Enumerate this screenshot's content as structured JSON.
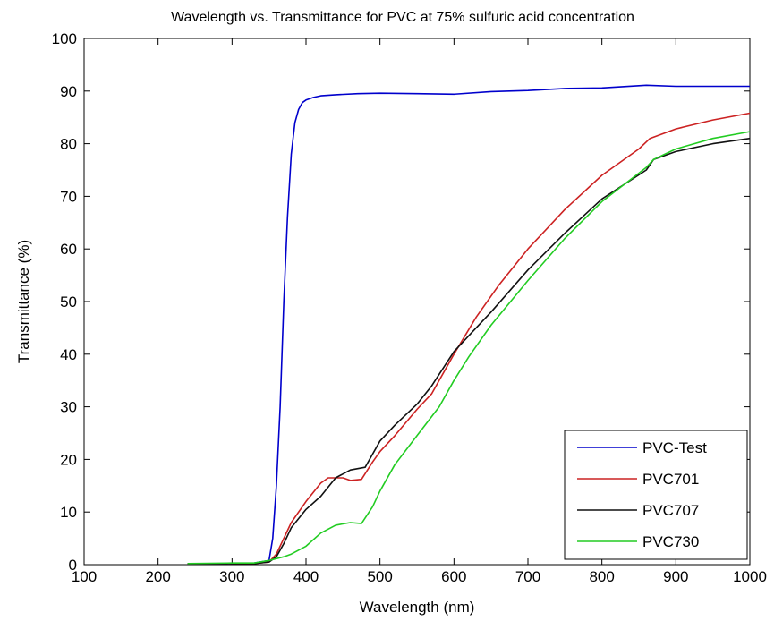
{
  "chart_data": {
    "type": "line",
    "title": "Wavelength vs. Transmittance for PVC at 75% sulfuric acid concentration",
    "xlabel": "Wavelength (nm)",
    "ylabel": "Transmittance (%)",
    "xlim": [
      100,
      1000
    ],
    "ylim": [
      0,
      100
    ],
    "xticks": [
      "100",
      "200",
      "300",
      "400",
      "500",
      "600",
      "700",
      "800",
      "900",
      "1000"
    ],
    "yticks": [
      "0",
      "10",
      "20",
      "30",
      "40",
      "50",
      "60",
      "70",
      "80",
      "90",
      "100"
    ],
    "grid": false,
    "legend_position": "bottom-right",
    "series": [
      {
        "name": "PVC-Test",
        "color": "#0000cc",
        "points": [
          [
            240,
            0.2
          ],
          [
            300,
            0.2
          ],
          [
            330,
            0.3
          ],
          [
            350,
            0.8
          ],
          [
            355,
            5
          ],
          [
            360,
            15
          ],
          [
            365,
            30
          ],
          [
            370,
            50
          ],
          [
            375,
            66
          ],
          [
            380,
            78
          ],
          [
            385,
            84
          ],
          [
            390,
            86.5
          ],
          [
            395,
            87.8
          ],
          [
            400,
            88.3
          ],
          [
            410,
            88.8
          ],
          [
            420,
            89.1
          ],
          [
            440,
            89.3
          ],
          [
            470,
            89.5
          ],
          [
            500,
            89.6
          ],
          [
            550,
            89.5
          ],
          [
            600,
            89.4
          ],
          [
            650,
            89.9
          ],
          [
            700,
            90.1
          ],
          [
            750,
            90.5
          ],
          [
            800,
            90.6
          ],
          [
            860,
            91.1
          ],
          [
            900,
            90.9
          ],
          [
            1000,
            90.9
          ]
        ]
      },
      {
        "name": "PVC701",
        "color": "#cc2222",
        "points": [
          [
            240,
            0.2
          ],
          [
            300,
            0.2
          ],
          [
            330,
            0.2
          ],
          [
            350,
            0.5
          ],
          [
            360,
            2
          ],
          [
            370,
            5
          ],
          [
            380,
            8
          ],
          [
            400,
            12
          ],
          [
            420,
            15.5
          ],
          [
            430,
            16.5
          ],
          [
            450,
            16.5
          ],
          [
            460,
            16
          ],
          [
            475,
            16.2
          ],
          [
            490,
            19.5
          ],
          [
            500,
            21.5
          ],
          [
            520,
            24.5
          ],
          [
            550,
            29.5
          ],
          [
            570,
            32.5
          ],
          [
            600,
            40
          ],
          [
            630,
            47
          ],
          [
            660,
            53
          ],
          [
            700,
            60
          ],
          [
            750,
            67.5
          ],
          [
            800,
            74
          ],
          [
            850,
            79
          ],
          [
            865,
            81
          ],
          [
            900,
            82.8
          ],
          [
            950,
            84.5
          ],
          [
            1000,
            85.8
          ]
        ]
      },
      {
        "name": "PVC707",
        "color": "#111111",
        "points": [
          [
            240,
            0.2
          ],
          [
            300,
            0.2
          ],
          [
            330,
            0.2
          ],
          [
            350,
            0.5
          ],
          [
            360,
            1.5
          ],
          [
            370,
            4
          ],
          [
            380,
            7
          ],
          [
            400,
            10.5
          ],
          [
            420,
            13
          ],
          [
            440,
            16.5
          ],
          [
            460,
            18
          ],
          [
            480,
            18.5
          ],
          [
            500,
            23.5
          ],
          [
            520,
            26.5
          ],
          [
            550,
            30.5
          ],
          [
            570,
            34
          ],
          [
            600,
            40.5
          ],
          [
            630,
            45
          ],
          [
            650,
            48
          ],
          [
            700,
            56
          ],
          [
            750,
            63
          ],
          [
            800,
            69.5
          ],
          [
            860,
            75
          ],
          [
            870,
            77
          ],
          [
            900,
            78.5
          ],
          [
            950,
            80
          ],
          [
            1000,
            81
          ]
        ]
      },
      {
        "name": "PVC730",
        "color": "#22cc22",
        "points": [
          [
            240,
            0.2
          ],
          [
            300,
            0.3
          ],
          [
            330,
            0.3
          ],
          [
            350,
            0.8
          ],
          [
            370,
            1.5
          ],
          [
            380,
            2
          ],
          [
            400,
            3.5
          ],
          [
            420,
            6
          ],
          [
            440,
            7.5
          ],
          [
            460,
            8
          ],
          [
            475,
            7.8
          ],
          [
            490,
            11
          ],
          [
            500,
            14
          ],
          [
            520,
            19
          ],
          [
            550,
            24.5
          ],
          [
            580,
            30
          ],
          [
            600,
            35
          ],
          [
            620,
            39.5
          ],
          [
            650,
            45.5
          ],
          [
            700,
            54
          ],
          [
            750,
            62
          ],
          [
            800,
            69
          ],
          [
            860,
            75.5
          ],
          [
            870,
            77
          ],
          [
            900,
            79
          ],
          [
            950,
            81
          ],
          [
            1000,
            82.3
          ]
        ]
      }
    ]
  }
}
